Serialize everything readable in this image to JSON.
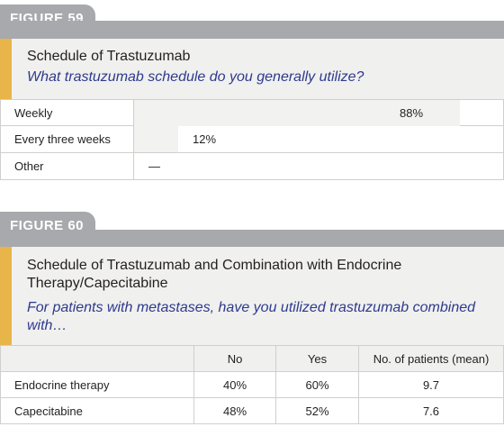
{
  "figure59": {
    "tab_label": "FIGURE 59",
    "title": "Schedule of Trastuzumab",
    "question": "What trastuzumab schedule do you generally utilize?",
    "rows": [
      {
        "label": "Weekly",
        "value": "88%",
        "fraction": 0.88
      },
      {
        "label": "Every three weeks",
        "value": "12%",
        "fraction": 0.12
      },
      {
        "label": "Other",
        "value": "—",
        "fraction": 0
      }
    ]
  },
  "figure60": {
    "tab_label": "FIGURE 60",
    "title_line1": "Schedule of Trastuzumab and Combination with Endocrine",
    "title_line2": "Therapy/Capecitabine",
    "question_line1": "For patients with metastases, have you utilized trastuzumab combined",
    "question_line2": "with…",
    "columns": [
      "",
      "No",
      "Yes",
      "No. of patients (mean)"
    ],
    "rows": [
      {
        "label": "Endocrine therapy",
        "no": "40%",
        "yes": "60%",
        "patients": "9.7"
      },
      {
        "label": "Capecitabine",
        "no": "48%",
        "yes": "52%",
        "patients": "7.6"
      }
    ]
  },
  "colors": {
    "accent": "#e8b54a",
    "tab_gray": "#a7a9ac",
    "question_blue": "#2e3a8c"
  }
}
